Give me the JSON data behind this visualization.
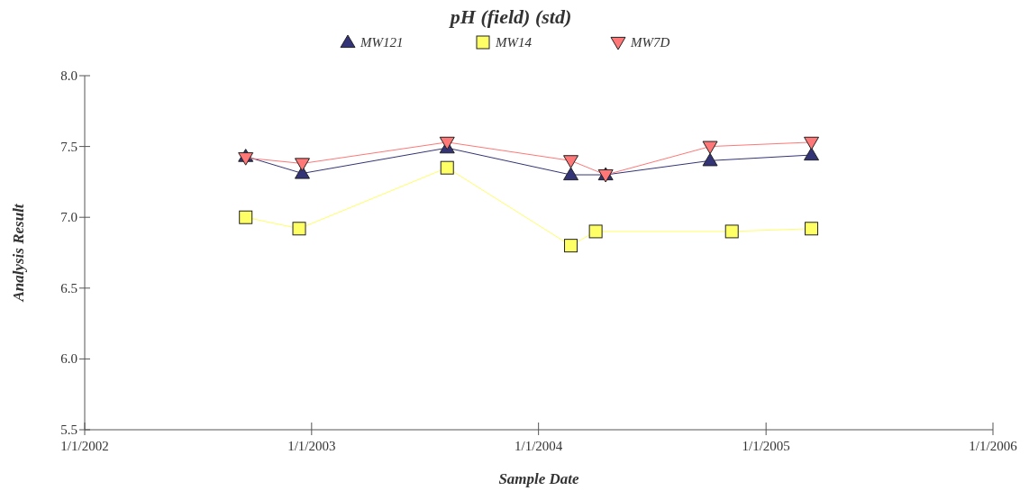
{
  "chart_data": {
    "type": "line",
    "title": "pH (field) (std)",
    "xlabel": "Sample Date",
    "ylabel": "Analysis Result",
    "xlim": [
      "2002-01-01",
      "2006-01-01"
    ],
    "xticks": [
      {
        "value": "2002-01-01",
        "label": "1/1/2002"
      },
      {
        "value": "2003-01-01",
        "label": "1/1/2003"
      },
      {
        "value": "2004-01-01",
        "label": "1/1/2004"
      },
      {
        "value": "2005-01-01",
        "label": "1/1/2005"
      },
      {
        "value": "2006-01-01",
        "label": "1/1/2006"
      }
    ],
    "ylim": [
      5.5,
      8.0
    ],
    "yticks": [
      {
        "value": 5.5,
        "label": "5.5"
      },
      {
        "value": 6,
        "label": "6.0"
      },
      {
        "value": 6.5,
        "label": "6.5"
      },
      {
        "value": 7,
        "label": "7.0"
      },
      {
        "value": 7.5,
        "label": "7.5"
      },
      {
        "value": 8,
        "label": "8.0"
      }
    ],
    "grid": false,
    "legend": "top",
    "series": [
      {
        "name": "MW121",
        "color": "#333377",
        "marker": "triangle",
        "x": [
          "2002-09-17",
          "2002-12-17",
          "2003-08-07",
          "2004-02-22",
          "2004-04-18",
          "2004-10-03",
          "2005-03-15"
        ],
        "values": [
          7.43,
          7.31,
          7.49,
          7.3,
          7.3,
          7.4,
          7.44
        ]
      },
      {
        "name": "MW14",
        "color": "#ffff66",
        "marker": "square",
        "x": [
          "2002-09-17",
          "2002-12-12",
          "2003-08-07",
          "2004-02-22",
          "2004-04-02",
          "2004-11-07",
          "2005-03-15"
        ],
        "values": [
          7.0,
          6.92,
          7.35,
          6.8,
          6.9,
          6.9,
          6.92
        ]
      },
      {
        "name": "MW7D",
        "color": "#ff7777",
        "marker": "triangle-down",
        "x": [
          "2002-09-17",
          "2002-12-17",
          "2003-08-07",
          "2004-02-22",
          "2004-04-18",
          "2004-10-03",
          "2005-03-15"
        ],
        "values": [
          7.42,
          7.38,
          7.53,
          7.4,
          7.3,
          7.5,
          7.53
        ]
      }
    ]
  }
}
